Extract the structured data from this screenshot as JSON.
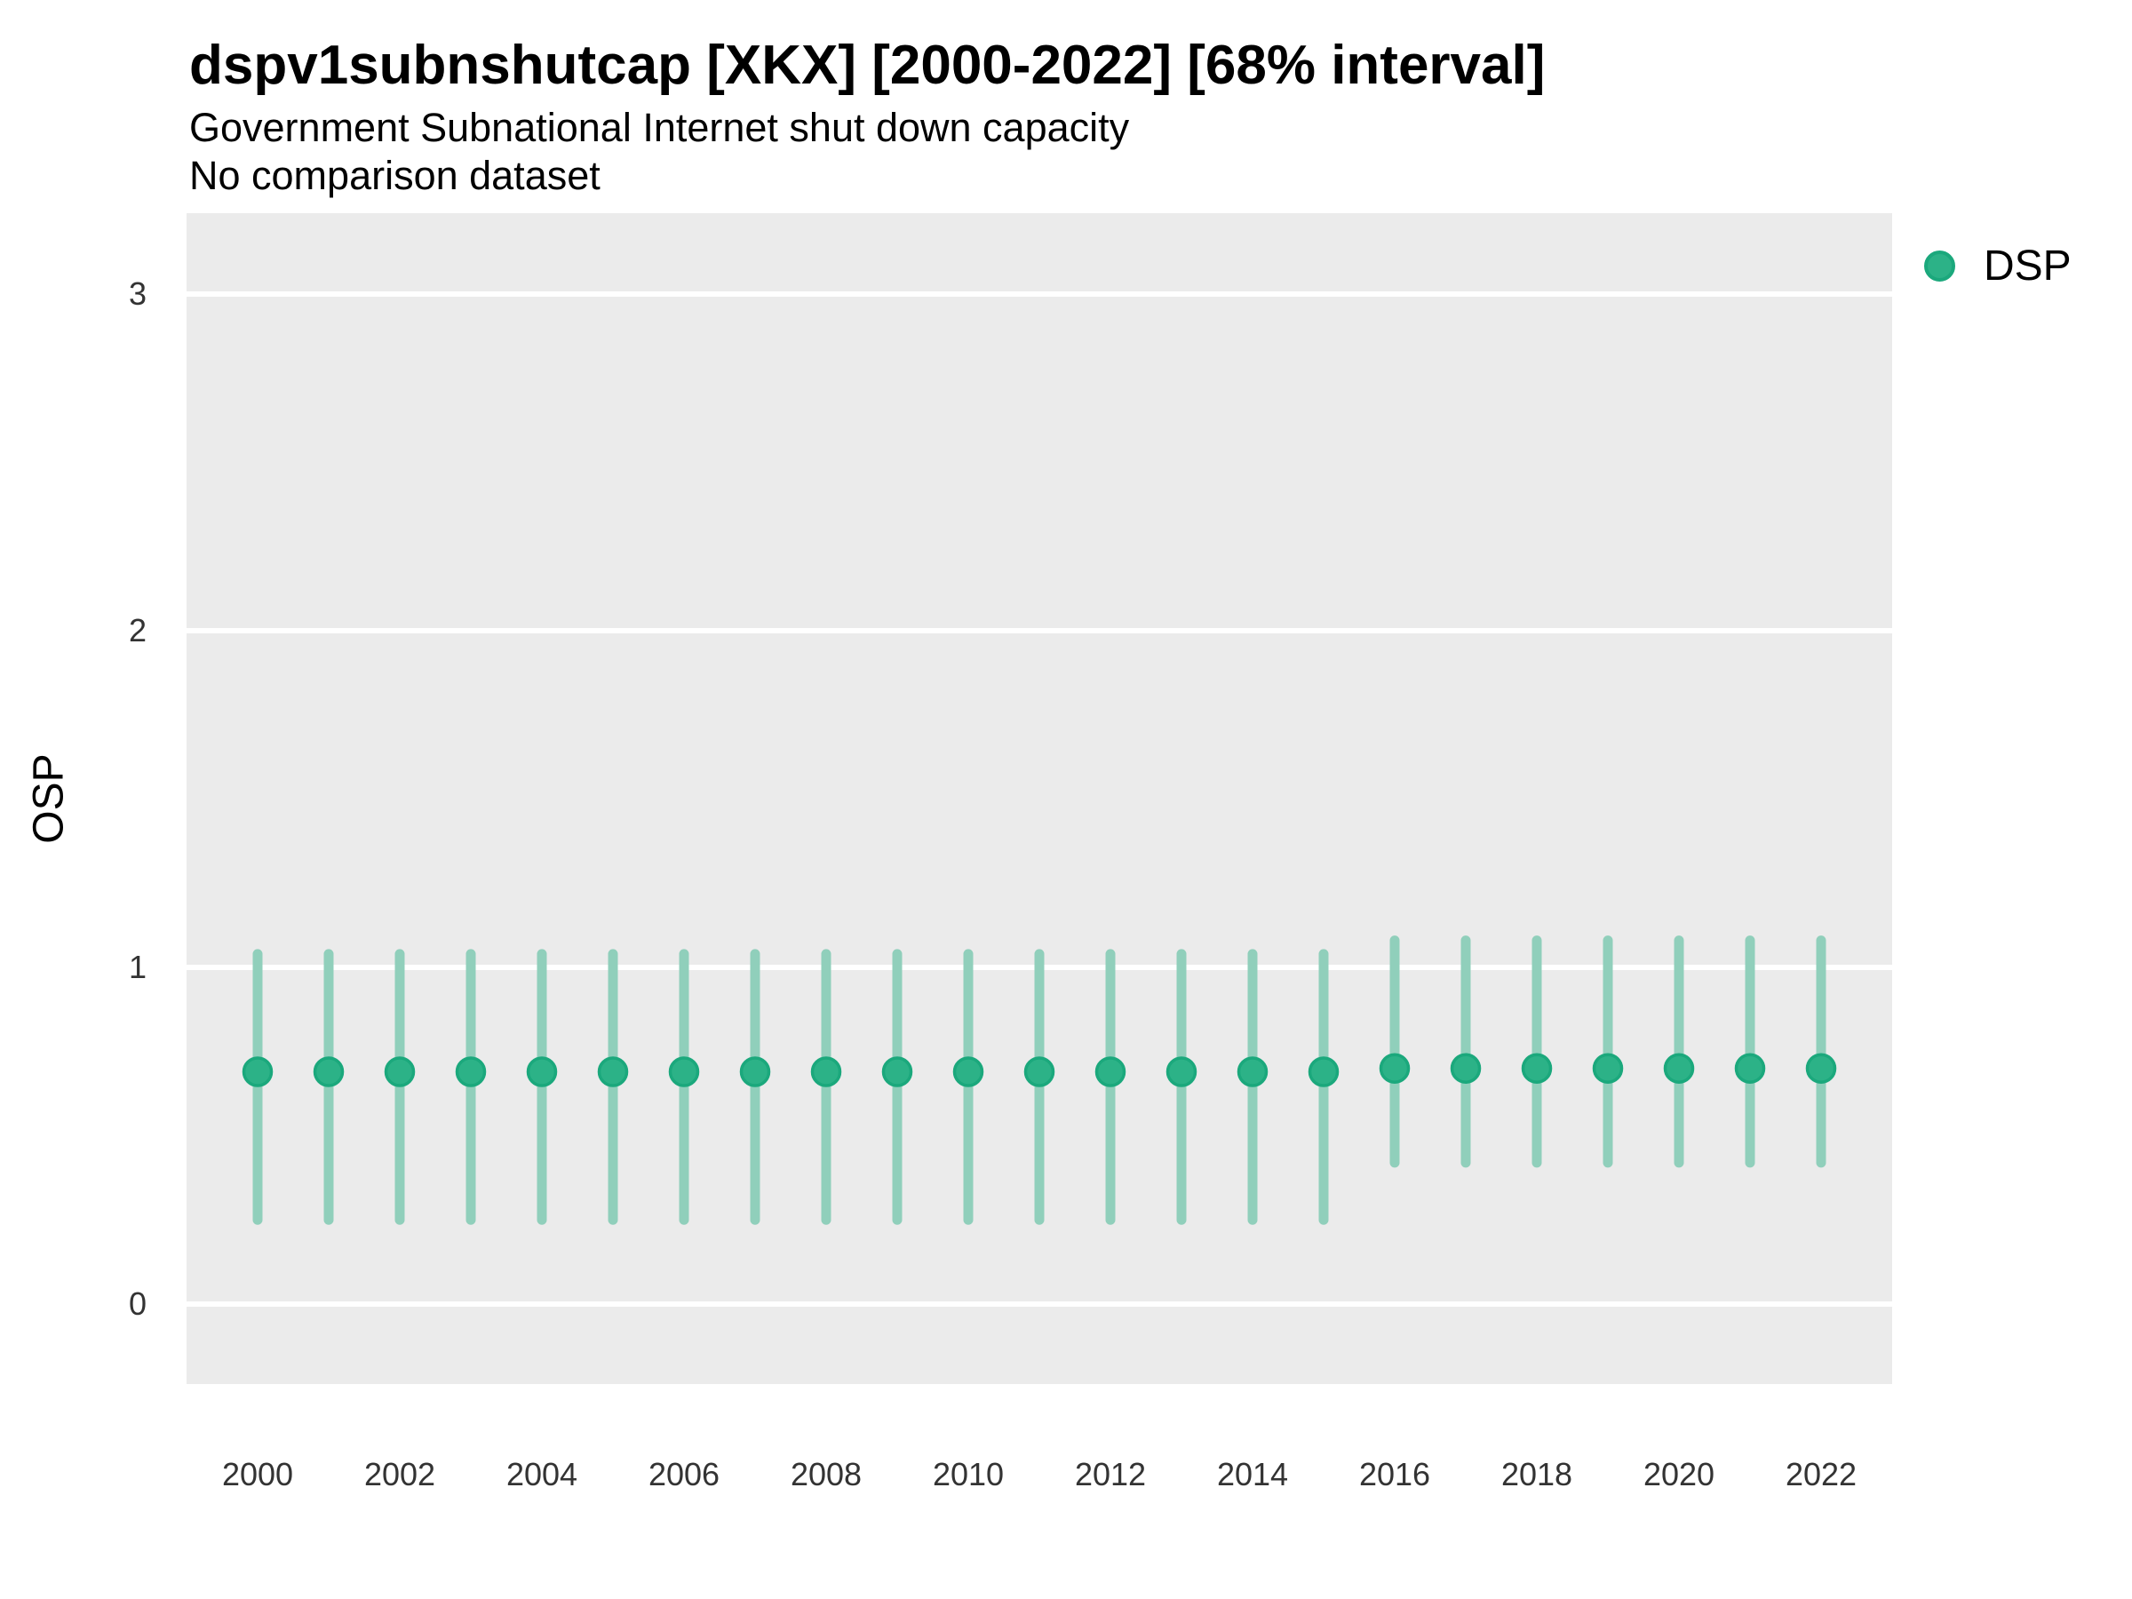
{
  "header": {
    "title": "dspv1subnshutcap [XKX] [2000-2022] [68% interval]",
    "subtitle": "Government Subnational Internet shut down capacity",
    "note": "No comparison dataset"
  },
  "axes": {
    "y_label": "OSP",
    "y_ticks": [
      0,
      1,
      2,
      3
    ],
    "x_ticks": [
      "2000",
      "2002",
      "2004",
      "2006",
      "2008",
      "2010",
      "2012",
      "2014",
      "2016",
      "2018",
      "2020",
      "2022"
    ]
  },
  "legend": {
    "position": "right-top",
    "items": [
      {
        "label": "DSP",
        "color": "#2CB287"
      }
    ]
  },
  "colors": {
    "panel_background": "#EBEBEB",
    "gridline": "#FFFFFF",
    "point_fill": "#2CB287",
    "point_stroke": "#1BA87C",
    "interval_bar": "#90CFBB",
    "tick_text": "#333333",
    "title_text": "#000000"
  },
  "chart_data": {
    "type": "scatter",
    "title": "dspv1subnshutcap [XKX] [2000-2022] [68% interval]",
    "subtitle": "Government Subnational Internet shut down capacity",
    "note": "No comparison dataset",
    "xlabel": "",
    "ylabel": "OSP",
    "interval_level": "68%",
    "ylim": [
      -0.24,
      3.24
    ],
    "y_ticks": [
      0,
      1,
      2,
      3
    ],
    "x_range": [
      2000,
      2022
    ],
    "grid": "horizontal-major-only",
    "legend_position": "right-top",
    "series": [
      {
        "name": "DSP",
        "points": [
          {
            "year": 2000,
            "estimate": 0.69,
            "lower": 0.25,
            "upper": 1.04
          },
          {
            "year": 2001,
            "estimate": 0.69,
            "lower": 0.25,
            "upper": 1.04
          },
          {
            "year": 2002,
            "estimate": 0.69,
            "lower": 0.25,
            "upper": 1.04
          },
          {
            "year": 2003,
            "estimate": 0.69,
            "lower": 0.25,
            "upper": 1.04
          },
          {
            "year": 2004,
            "estimate": 0.69,
            "lower": 0.25,
            "upper": 1.04
          },
          {
            "year": 2005,
            "estimate": 0.69,
            "lower": 0.25,
            "upper": 1.04
          },
          {
            "year": 2006,
            "estimate": 0.69,
            "lower": 0.25,
            "upper": 1.04
          },
          {
            "year": 2007,
            "estimate": 0.69,
            "lower": 0.25,
            "upper": 1.04
          },
          {
            "year": 2008,
            "estimate": 0.69,
            "lower": 0.25,
            "upper": 1.04
          },
          {
            "year": 2009,
            "estimate": 0.69,
            "lower": 0.25,
            "upper": 1.04
          },
          {
            "year": 2010,
            "estimate": 0.69,
            "lower": 0.25,
            "upper": 1.04
          },
          {
            "year": 2011,
            "estimate": 0.69,
            "lower": 0.25,
            "upper": 1.04
          },
          {
            "year": 2012,
            "estimate": 0.69,
            "lower": 0.25,
            "upper": 1.04
          },
          {
            "year": 2013,
            "estimate": 0.69,
            "lower": 0.25,
            "upper": 1.04
          },
          {
            "year": 2014,
            "estimate": 0.69,
            "lower": 0.25,
            "upper": 1.04
          },
          {
            "year": 2015,
            "estimate": 0.69,
            "lower": 0.25,
            "upper": 1.04
          },
          {
            "year": 2016,
            "estimate": 0.7,
            "lower": 0.42,
            "upper": 1.08
          },
          {
            "year": 2017,
            "estimate": 0.7,
            "lower": 0.42,
            "upper": 1.08
          },
          {
            "year": 2018,
            "estimate": 0.7,
            "lower": 0.42,
            "upper": 1.08
          },
          {
            "year": 2019,
            "estimate": 0.7,
            "lower": 0.42,
            "upper": 1.08
          },
          {
            "year": 2020,
            "estimate": 0.7,
            "lower": 0.42,
            "upper": 1.08
          },
          {
            "year": 2021,
            "estimate": 0.7,
            "lower": 0.42,
            "upper": 1.08
          },
          {
            "year": 2022,
            "estimate": 0.7,
            "lower": 0.42,
            "upper": 1.08
          }
        ]
      }
    ]
  }
}
